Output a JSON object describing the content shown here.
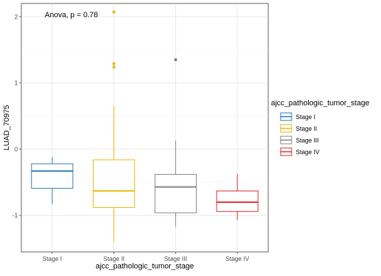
{
  "chart_data": {
    "type": "boxplot",
    "xlabel": "ajcc_pathologic_tumor_stage",
    "ylabel": "LUAD_70975",
    "annotation": "Anova, p = 0.78",
    "ylim": [
      -1.55,
      2.2
    ],
    "yticks": [
      -1,
      0,
      1,
      2
    ],
    "grid": true,
    "legend": {
      "title": "ajcc_pathologic_tumor_stage",
      "placement": "right"
    },
    "categories": [
      "Stage I",
      "Stage II",
      "Stage III",
      "Stage IV"
    ],
    "series": [
      {
        "name": "Stage I",
        "color": "#1f77b4",
        "min": -0.83,
        "q1": -0.59,
        "median": -0.33,
        "q3": -0.22,
        "max": -0.12,
        "outliers": []
      },
      {
        "name": "Stage II",
        "color": "#e6b800",
        "min": -1.4,
        "q1": -0.88,
        "median": -0.63,
        "q3": -0.16,
        "max": 0.65,
        "outliers": [
          1.24,
          1.29,
          2.07
        ]
      },
      {
        "name": "Stage III",
        "color": "#808080",
        "min": -1.17,
        "q1": -0.96,
        "median": -0.57,
        "q3": -0.38,
        "max": 0.13,
        "outliers": [
          1.35
        ]
      },
      {
        "name": "Stage IV",
        "color": "#d62728",
        "min": -1.07,
        "q1": -0.94,
        "median": -0.8,
        "q3": -0.63,
        "max": -0.37,
        "outliers": []
      }
    ]
  }
}
